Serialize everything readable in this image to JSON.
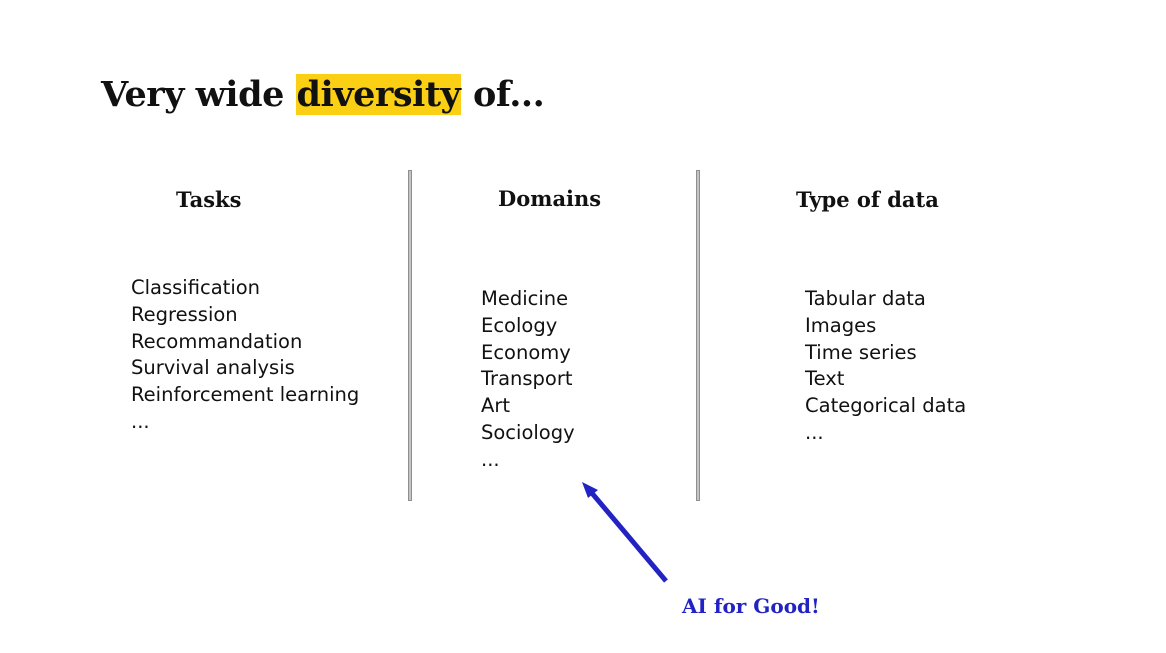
{
  "title": {
    "before": "Very wide ",
    "highlight": "diversity",
    "after": " of...",
    "highlight_color": "#fbcf13"
  },
  "columns": [
    {
      "heading": "Tasks",
      "items": [
        "Classification",
        "Regression",
        "Recommandation",
        "Survival analysis",
        "Reinforcement learning",
        "..."
      ]
    },
    {
      "heading": "Domains",
      "items": [
        "Medicine",
        "Ecology",
        "Economy",
        "Transport",
        "Art",
        "Sociology",
        "..."
      ]
    },
    {
      "heading": "Type of data",
      "items": [
        "Tabular data",
        "Images",
        "Time series",
        "Text",
        "Categorical data",
        "..."
      ]
    }
  ],
  "callout": {
    "text": "AI for Good!",
    "color": "#2323c4",
    "icon": "arrow-up-left-icon"
  }
}
